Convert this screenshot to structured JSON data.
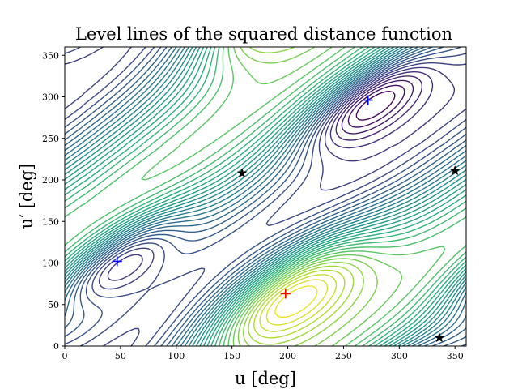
{
  "chart_data": {
    "type": "contour",
    "title": "Level lines of the squared distance function",
    "xlabel": "u [deg]",
    "ylabel": "u′ [deg]",
    "xlim": [
      0,
      360
    ],
    "ylim": [
      0,
      360
    ],
    "xticks": [
      0,
      50,
      100,
      150,
      200,
      250,
      300,
      350
    ],
    "yticks": [
      0,
      50,
      100,
      150,
      200,
      250,
      300,
      350
    ],
    "grid": false,
    "colormap": "viridis",
    "minima": [
      {
        "u": 47,
        "uprime": 102,
        "color": "#0000ff",
        "marker": "plus"
      },
      {
        "u": 272,
        "uprime": 296,
        "color": "#0000ff",
        "marker": "plus"
      }
    ],
    "maximum": {
      "u": 198,
      "uprime": 63,
      "color": "#ff0000",
      "marker": "plus"
    },
    "saddle_points": [
      {
        "u": 159,
        "uprime": 208,
        "marker": "star"
      },
      {
        "u": 350,
        "uprime": 211,
        "marker": "star"
      },
      {
        "u": 336,
        "uprime": 10,
        "marker": "star"
      }
    ]
  }
}
